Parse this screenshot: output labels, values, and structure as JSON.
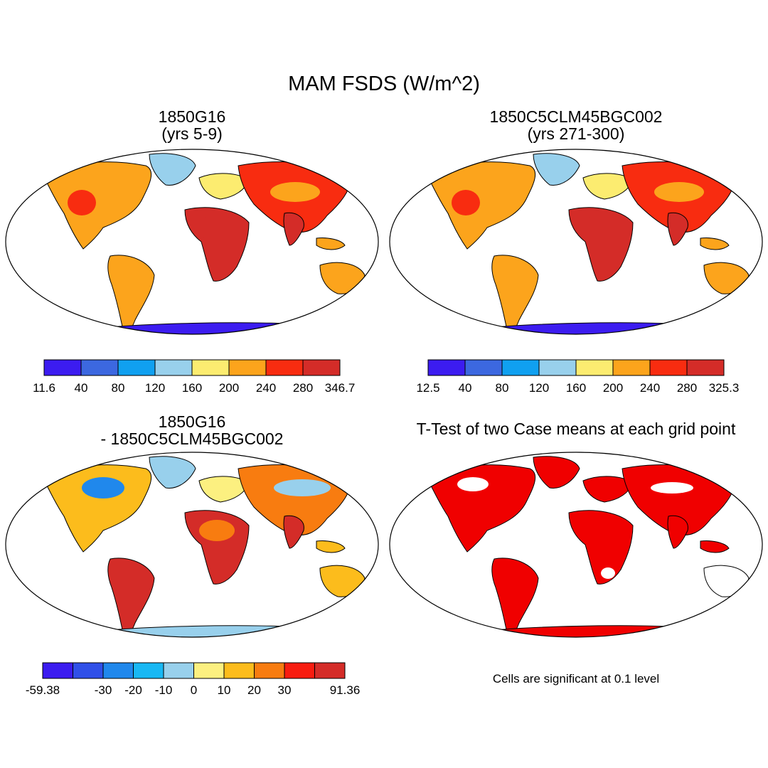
{
  "figure": {
    "title": "MAM FSDS (W/m^2)",
    "significance_note": "Cells are significant at 0.1 level"
  },
  "panels": [
    {
      "id": "p1",
      "title_line1": "1850G16",
      "title_line2": "(yrs 5-9)",
      "colorbar": {
        "colors": [
          "#3c1cf0",
          "#3c68e0",
          "#10a0f0",
          "#98d0ec",
          "#fcec70",
          "#fca41c",
          "#f82c10",
          "#d42c28"
        ],
        "labels": [
          "11.6",
          "40",
          "80",
          "120",
          "160",
          "200",
          "240",
          "280",
          "346.7"
        ]
      }
    },
    {
      "id": "p2",
      "title_line1": "1850C5CLM45BGC002",
      "title_line2": "(yrs 271-300)",
      "colorbar": {
        "colors": [
          "#3c1cf0",
          "#3c68e0",
          "#10a0f0",
          "#98d0ec",
          "#fcec70",
          "#fca41c",
          "#f82c10",
          "#d42c28"
        ],
        "labels": [
          "12.5",
          "40",
          "80",
          "120",
          "160",
          "200",
          "240",
          "280",
          "325.3"
        ]
      }
    },
    {
      "id": "p3",
      "title_line1": "1850G16",
      "title_line2": "- 1850C5CLM45BGC002",
      "colorbar": {
        "colors": [
          "#3c1cf0",
          "#3050e8",
          "#2088ec",
          "#18b8f4",
          "#98d0ec",
          "#fcf080",
          "#fcbc1c",
          "#f87c10",
          "#f81c10",
          "#d42c28"
        ],
        "labels": [
          "-59.38",
          "",
          "-30",
          "-20",
          "-10",
          "0",
          "10",
          "20",
          "30",
          "",
          "91.36"
        ]
      }
    },
    {
      "id": "p4",
      "title_line1": "T-Test of two Case means at each grid point"
    }
  ],
  "palettes": {
    "abs": {
      "hot": "#d42c28",
      "warm": "#f82c10",
      "mid": "#fca41c",
      "mild": "#fcec70",
      "cool": "#98d0ec",
      "cold": "#3c68e0",
      "ice": "#3c1cf0"
    },
    "diff": {
      "hot": "#d42c28",
      "warm": "#f87c10",
      "mid": "#fcbc1c",
      "mild": "#fcf080",
      "cool": "#98d0ec",
      "cold": "#2088ec",
      "ice": "#98d0ec"
    },
    "sig": {
      "fill": "#f00000",
      "mask": "#ffffff"
    }
  }
}
